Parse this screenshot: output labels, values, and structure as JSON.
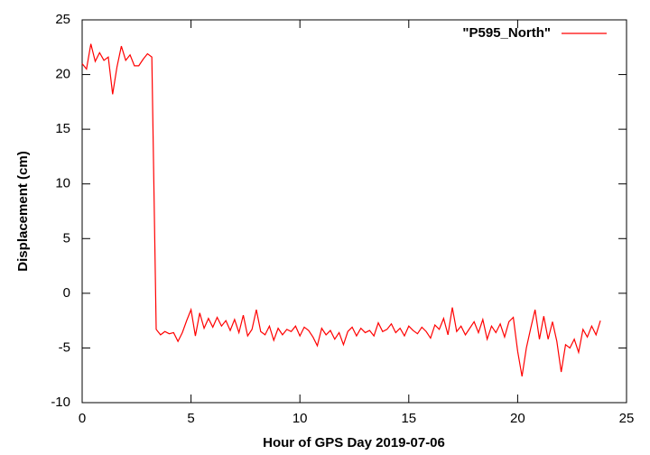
{
  "chart_data": {
    "type": "line",
    "xlabel": "Hour of GPS Day 2019-07-06",
    "ylabel": "Displacement (cm)",
    "x": [
      0,
      0.2,
      0.4,
      0.6,
      0.8,
      1,
      1.2,
      1.4,
      1.6,
      1.8,
      2,
      2.2,
      2.4,
      2.6,
      2.8,
      3,
      3.2,
      3.4,
      3.6,
      3.8,
      4,
      4.2,
      4.4,
      4.6,
      4.8,
      5,
      5.2,
      5.4,
      5.6,
      5.8,
      6,
      6.2,
      6.4,
      6.6,
      6.8,
      7,
      7.2,
      7.4,
      7.6,
      7.8,
      8,
      8.2,
      8.4,
      8.6,
      8.8,
      9,
      9.2,
      9.4,
      9.6,
      9.8,
      10,
      10.2,
      10.4,
      10.6,
      10.8,
      11,
      11.2,
      11.4,
      11.6,
      11.8,
      12,
      12.2,
      12.4,
      12.6,
      12.8,
      13,
      13.2,
      13.4,
      13.6,
      13.8,
      14,
      14.2,
      14.4,
      14.6,
      14.8,
      15,
      15.2,
      15.4,
      15.6,
      15.8,
      16,
      16.2,
      16.4,
      16.6,
      16.8,
      17,
      17.2,
      17.4,
      17.6,
      17.8,
      18,
      18.2,
      18.4,
      18.6,
      18.8,
      19,
      19.2,
      19.4,
      19.6,
      19.8,
      20,
      20.2,
      20.4,
      20.6,
      20.8,
      21,
      21.2,
      21.4,
      21.6,
      21.8,
      22,
      22.2,
      22.4,
      22.6,
      22.8,
      23,
      23.2,
      23.4,
      23.6,
      23.8
    ],
    "series": [
      {
        "name": "\"P595_North\"",
        "color": "#ff0000",
        "values": [
          21,
          20.5,
          22.8,
          21.2,
          22,
          21.3,
          21.6,
          18.2,
          20.7,
          22.6,
          21.3,
          21.8,
          20.8,
          20.8,
          21.4,
          21.9,
          21.6,
          -3.3,
          -3.8,
          -3.5,
          -3.7,
          -3.6,
          -4.4,
          -3.6,
          -2.5,
          -1.5,
          -3.9,
          -1.8,
          -3.2,
          -2.3,
          -3.1,
          -2.2,
          -3,
          -2.5,
          -3.4,
          -2.4,
          -3.6,
          -2,
          -3.9,
          -3.3,
          -1.5,
          -3.5,
          -3.8,
          -3,
          -4.3,
          -3.2,
          -3.8,
          -3.3,
          -3.5,
          -3,
          -3.9,
          -3.1,
          -3.4,
          -4,
          -4.8,
          -3.2,
          -3.8,
          -3.4,
          -4.2,
          -3.6,
          -4.7,
          -3.5,
          -3.1,
          -3.9,
          -3.2,
          -3.6,
          -3.4,
          -3.9,
          -2.7,
          -3.5,
          -3.3,
          -2.8,
          -3.6,
          -3.2,
          -3.9,
          -3,
          -3.4,
          -3.7,
          -3.1,
          -3.5,
          -4.1,
          -2.9,
          -3.3,
          -2.3,
          -3.8,
          -1.3,
          -3.5,
          -3,
          -3.8,
          -3.2,
          -2.6,
          -3.6,
          -2.4,
          -4.2,
          -3,
          -3.6,
          -2.8,
          -4,
          -2.6,
          -2.2,
          -5.3,
          -7.6,
          -5,
          -3.2,
          -1.5,
          -4.2,
          -2.1,
          -4.2,
          -2.6,
          -4.4,
          -7.2,
          -4.7,
          -5,
          -4.2,
          -5.4,
          -3.3,
          -4,
          -3,
          -3.8,
          -2.5
        ]
      }
    ],
    "xlim": [
      0,
      25
    ],
    "xticks": [
      0,
      5,
      10,
      15,
      20,
      25
    ],
    "ylim": [
      -10,
      25
    ],
    "yticks": [
      -10,
      -5,
      0,
      5,
      10,
      15,
      20,
      25
    ],
    "legend": "top-right"
  }
}
